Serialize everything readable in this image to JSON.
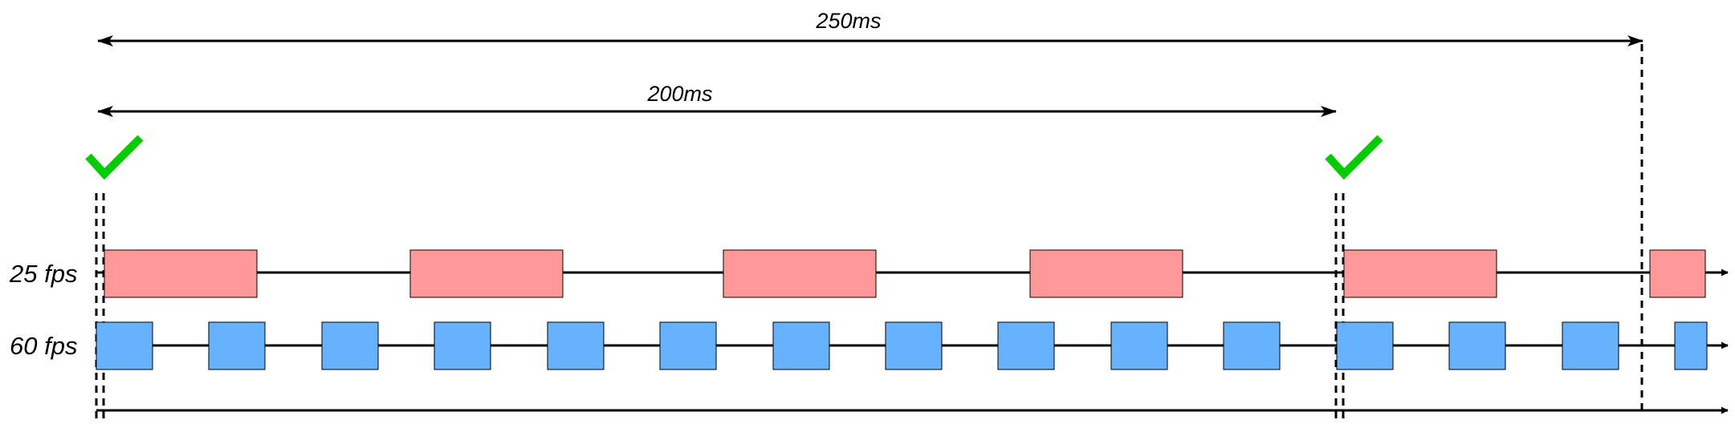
{
  "durations": [
    {
      "label": "250ms"
    },
    {
      "label": "200ms"
    }
  ],
  "tracks": [
    {
      "label": "25 fps",
      "frame_count": 6,
      "color": "#ff9999"
    },
    {
      "label": "60 fps",
      "frame_count": 15,
      "color": "#66b2ff"
    }
  ],
  "sync_marks": [
    {
      "icon": "checkmark-icon",
      "color": "#00cc00"
    },
    {
      "icon": "checkmark-icon",
      "color": "#00cc00"
    }
  ]
}
